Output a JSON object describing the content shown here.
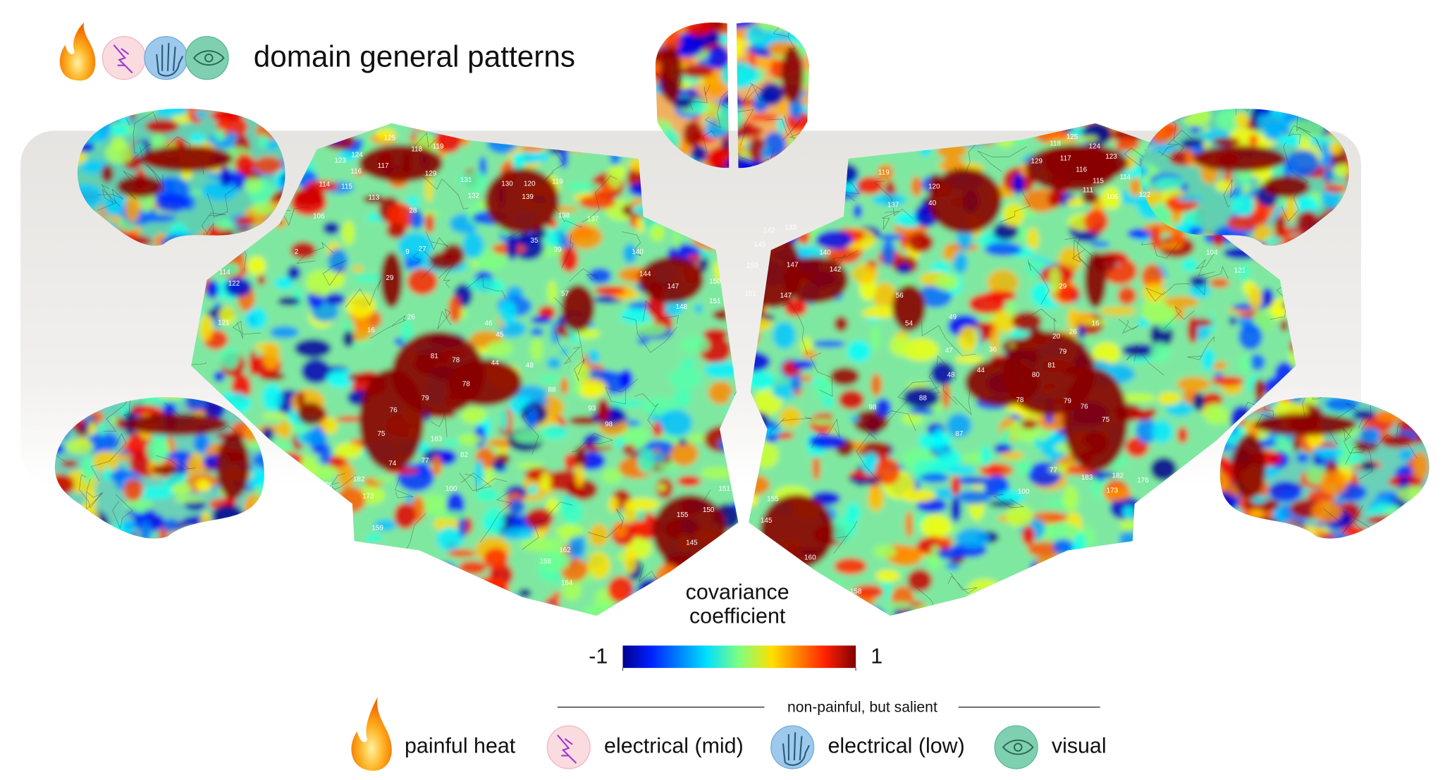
{
  "title": "domain general patterns",
  "colorbar": {
    "label": [
      "covariance",
      "coefficient"
    ],
    "lim": [
      -1,
      1
    ],
    "ticks": [
      -1,
      1
    ]
  },
  "legend": {
    "subtitle": "non-painful, but salient",
    "items": [
      "painful heat",
      "electrical (mid)",
      "electrical (low)",
      "visual"
    ]
  },
  "regions": {
    "left": [
      "125",
      "118",
      "119",
      "123",
      "124",
      "117",
      "116",
      "129",
      "131",
      "130",
      "120",
      "119",
      "132",
      "139",
      "114",
      "115",
      "113",
      "106",
      "28",
      "138",
      "137",
      "2",
      "35",
      "39",
      "9",
      "27",
      "140",
      "144",
      "147",
      "150",
      "148",
      "151",
      "114",
      "122",
      "29",
      "57",
      "121",
      "16",
      "26",
      "46",
      "45",
      "81",
      "78",
      "44",
      "48",
      "76",
      "79",
      "78",
      "88",
      "93",
      "75",
      "183",
      "98",
      "74",
      "77",
      "82",
      "182",
      "176",
      "173",
      "100",
      "151",
      "150",
      "155",
      "145",
      "159",
      "158",
      "162",
      "164"
    ],
    "right": [
      "118",
      "125",
      "124",
      "123",
      "117",
      "116",
      "115",
      "114",
      "111",
      "106",
      "122",
      "129",
      "119",
      "120",
      "40",
      "137",
      "133",
      "142",
      "145",
      "140",
      "147",
      "150",
      "142",
      "151",
      "147",
      "104",
      "121",
      "56",
      "29",
      "54",
      "49",
      "16",
      "26",
      "20",
      "36",
      "47",
      "79",
      "48",
      "44",
      "80",
      "81",
      "88",
      "78",
      "79",
      "76",
      "75",
      "98",
      "87",
      "77",
      "183",
      "182",
      "176",
      "173",
      "100",
      "151",
      "150",
      "155",
      "145",
      "160",
      "158"
    ]
  }
}
